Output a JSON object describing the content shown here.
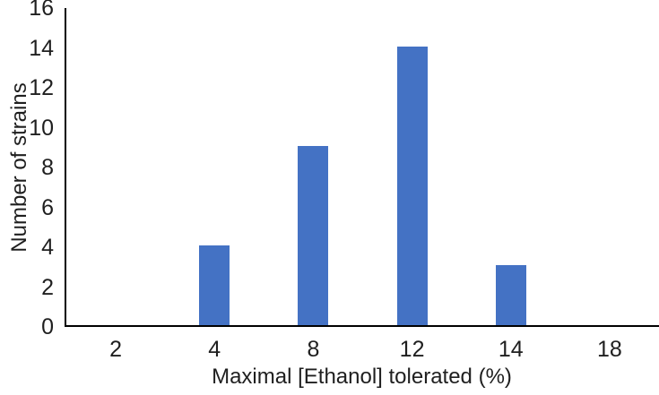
{
  "chart_data": {
    "type": "bar",
    "categories": [
      "2",
      "4",
      "8",
      "12",
      "14",
      "18"
    ],
    "values": [
      0,
      4,
      9,
      14,
      3,
      0
    ],
    "xlabel": "Maximal [Ethanol] tolerated (%)",
    "ylabel": "Number of strains",
    "ylim": [
      0,
      16
    ],
    "yticks": [
      0,
      2,
      4,
      6,
      8,
      10,
      12,
      14,
      16
    ],
    "bar_color": "#4472C4",
    "axis_color": "#000000",
    "text_color": "#1f1f1f",
    "grid": false,
    "legend_position": "none"
  }
}
